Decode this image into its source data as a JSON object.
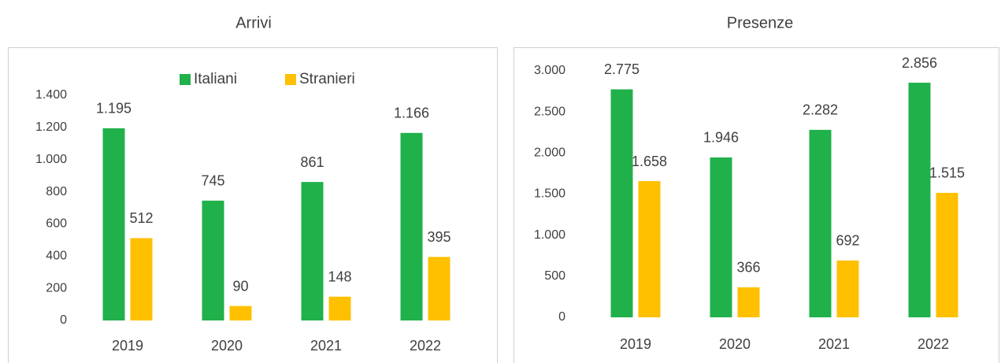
{
  "chart_data": [
    {
      "type": "bar",
      "title": "Arrivi",
      "categories": [
        "2019",
        "2020",
        "2021",
        "2022"
      ],
      "series": [
        {
          "name": "Italiani",
          "color": "#21b14b",
          "values": [
            1195,
            745,
            861,
            1166
          ],
          "value_labels": [
            "1.195",
            "745",
            "861",
            "1.166"
          ]
        },
        {
          "name": "Stranieri",
          "color": "#ffc000",
          "values": [
            512,
            90,
            148,
            395
          ],
          "value_labels": [
            "512",
            "90",
            "148",
            "395"
          ]
        }
      ],
      "ylim": [
        0,
        1400
      ],
      "yticks": [
        0,
        200,
        400,
        600,
        800,
        {
          "value": 1000,
          "label": "1.000"
        },
        {
          "value": 1200,
          "label": "1.200"
        },
        {
          "value": 1400,
          "label": "1.400"
        }
      ],
      "legend": "top",
      "grid": false
    },
    {
      "type": "bar",
      "title": "Presenze",
      "categories": [
        "2019",
        "2020",
        "2021",
        "2022"
      ],
      "series": [
        {
          "color": "#21b14b",
          "values": [
            2775,
            1946,
            2282,
            2856
          ],
          "value_labels": [
            "2.775",
            "1.946",
            "2.282",
            "2.856"
          ]
        },
        {
          "color": "#ffc000",
          "values": [
            1658,
            366,
            692,
            1515
          ],
          "value_labels": [
            "1.658",
            "366",
            "692",
            "1.515"
          ]
        }
      ],
      "ylim": [
        0,
        3000
      ],
      "yticks": [
        0,
        500,
        {
          "value": 1000,
          "label": "1.000"
        },
        {
          "value": 1500,
          "label": "1.500"
        },
        {
          "value": 2000,
          "label": "2.000"
        },
        {
          "value": 2500,
          "label": "2.500"
        },
        {
          "value": 3000,
          "label": "3.000"
        }
      ],
      "grid": false
    }
  ]
}
